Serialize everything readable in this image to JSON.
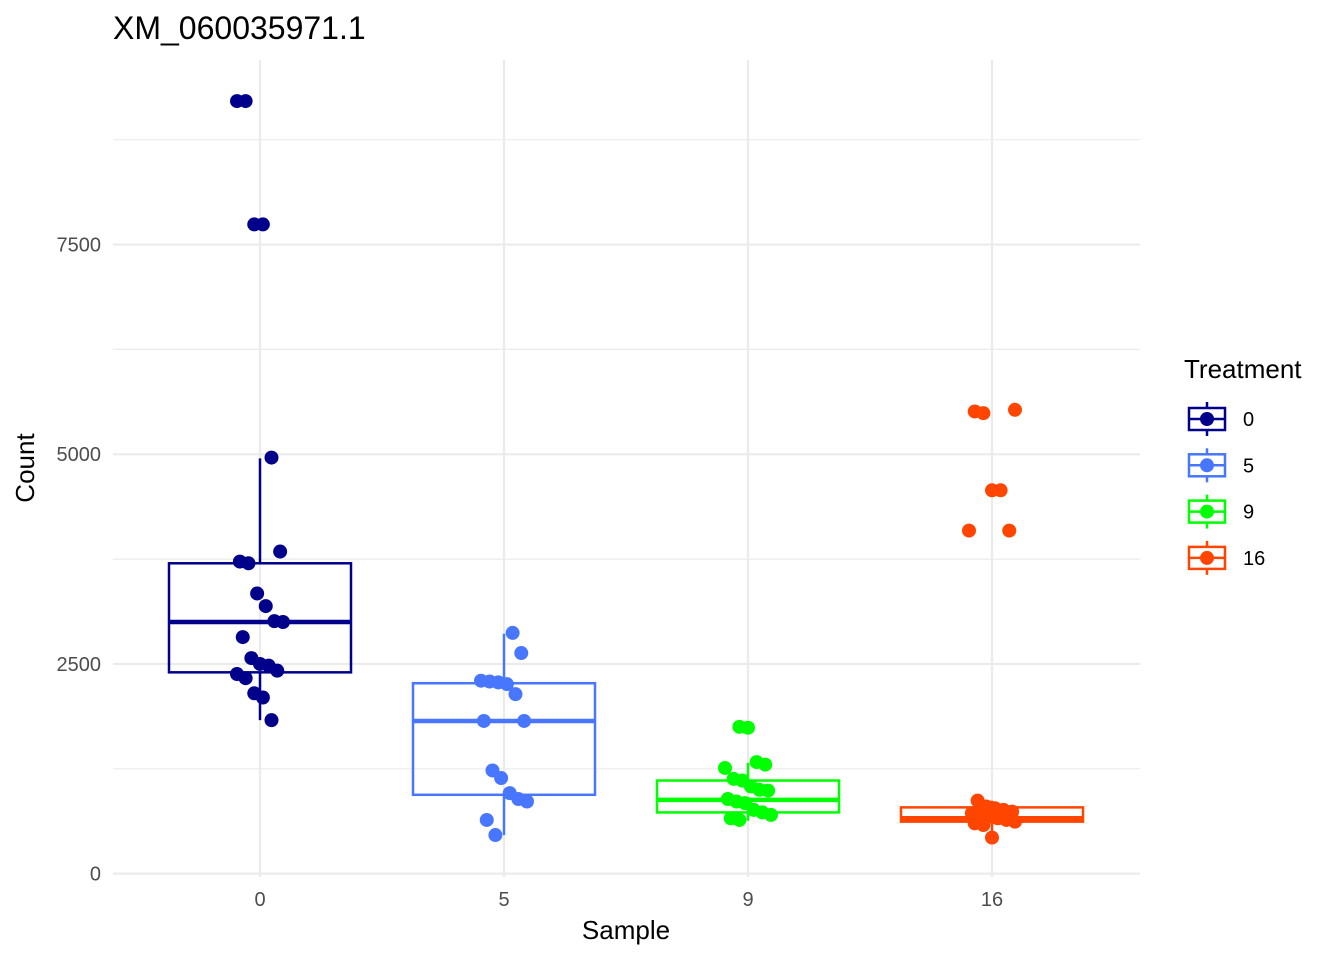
{
  "chart_data": {
    "type": "boxplot",
    "title": "XM_060035971.1",
    "xlabel": "Sample",
    "ylabel": "Count",
    "categories": [
      "0",
      "5",
      "9",
      "16"
    ],
    "ylim": [
      -40,
      9700
    ],
    "y_ticks": [
      0,
      2500,
      5000,
      7500
    ],
    "y_minor_ticks": [
      1250,
      3750,
      6250,
      8750
    ],
    "grid": true,
    "legend": {
      "title": "Treatment",
      "position": "right",
      "entries": [
        "0",
        "5",
        "9",
        "16"
      ]
    },
    "colors": {
      "0": "#00008B",
      "5": "#4876FF",
      "9": "#00FF00",
      "16": "#FF4500"
    },
    "boxes": [
      {
        "category": "0",
        "q1": 2400,
        "median": 3000,
        "q3": 3700,
        "whisker_low": 1830,
        "whisker_high": 4950
      },
      {
        "category": "5",
        "q1": 940,
        "median": 1820,
        "q3": 2270,
        "whisker_low": 460,
        "whisker_high": 2860
      },
      {
        "category": "9",
        "q1": 730,
        "median": 880,
        "q3": 1110,
        "whisker_low": 630,
        "whisker_high": 1320
      },
      {
        "category": "16",
        "q1": 620,
        "median": 660,
        "q3": 790,
        "whisker_low": 430,
        "whisker_high": 870
      }
    ],
    "points": [
      {
        "category": "0",
        "values": [
          9210,
          9210,
          7740,
          7740,
          4960,
          3840,
          3720,
          3700,
          3340,
          3190,
          3010,
          3000,
          2820,
          2570,
          2500,
          2480,
          2420,
          2380,
          2330,
          2150,
          2100,
          1830
        ]
      },
      {
        "category": "5",
        "values": [
          2870,
          2630,
          2300,
          2290,
          2280,
          2260,
          2140,
          1820,
          1820,
          1230,
          1140,
          960,
          890,
          860,
          640,
          460
        ]
      },
      {
        "category": "9",
        "values": [
          1750,
          1740,
          1330,
          1300,
          1260,
          1130,
          1110,
          1040,
          1000,
          990,
          890,
          860,
          840,
          760,
          730,
          700,
          660,
          640
        ]
      },
      {
        "category": "16",
        "values": [
          5530,
          5510,
          5490,
          4570,
          4570,
          4090,
          4090,
          870,
          800,
          780,
          760,
          740,
          720,
          700,
          680,
          660,
          640,
          620,
          600,
          580,
          430
        ]
      }
    ]
  }
}
